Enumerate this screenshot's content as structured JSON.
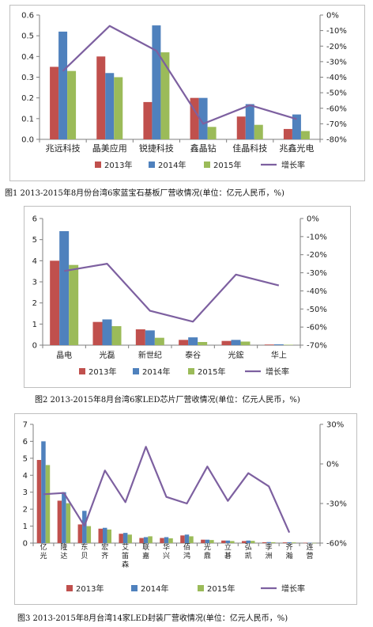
{
  "colors": {
    "y2013": "#c0504d",
    "y2014": "#4f81bd",
    "y2015": "#9bbb59",
    "growth": "#7d60a0",
    "axis": "#7f7f7f",
    "text": "#222222"
  },
  "legend_labels": [
    "2013年",
    "2014年",
    "2015年",
    "增长率"
  ],
  "captions": [
    "图1  2013-2015年8月份台湾6家蓝宝石基板厂营收情况(单位：亿元人民币，%)",
    "图2  2013-2015年8月台湾6家LED芯片厂营收情况(单位：亿元人民币，%)",
    "图3  2013-2015年8月台湾14家LED封装厂营收情况(单位：亿元人民币，%)"
  ],
  "chart_data": [
    {
      "type": "bar",
      "categories": [
        "兆远科技",
        "晶美应用",
        "锐捷科技",
        "鑫晶钻",
        "佳晶科技",
        "兆鑫光电"
      ],
      "series": [
        {
          "name": "2013年",
          "values": [
            0.35,
            0.4,
            0.18,
            0.2,
            0.11,
            0.05
          ]
        },
        {
          "name": "2014年",
          "values": [
            0.52,
            0.32,
            0.55,
            0.2,
            0.17,
            0.12
          ]
        },
        {
          "name": "2015年",
          "values": [
            0.33,
            0.3,
            0.42,
            0.06,
            0.07,
            0.04
          ]
        },
        {
          "name": "增长率",
          "axis": "right",
          "type": "line",
          "values": [
            -36,
            -7,
            -23,
            -70,
            -58,
            -67
          ]
        }
      ],
      "ylim": [
        0,
        0.6
      ],
      "yticks": [
        "0.0",
        "0.1",
        "0.2",
        "0.3",
        "0.4",
        "0.5",
        "0.6"
      ],
      "y2lim": [
        -80,
        0
      ],
      "y2ticks": [
        "0%",
        "-10%",
        "-20%",
        "-30%",
        "-40%",
        "-50%",
        "-60%",
        "-70%",
        "-80%"
      ],
      "grid": false,
      "legend": "bottom"
    },
    {
      "type": "bar",
      "categories": [
        "晶电",
        "光磊",
        "新世纪",
        "泰谷",
        "光鋐",
        "华上"
      ],
      "series": [
        {
          "name": "2013年",
          "values": [
            4.0,
            1.1,
            0.75,
            0.25,
            0.2,
            0.03
          ]
        },
        {
          "name": "2014年",
          "values": [
            5.4,
            1.22,
            0.7,
            0.37,
            0.25,
            0.04
          ]
        },
        {
          "name": "2015年",
          "values": [
            3.8,
            0.9,
            0.35,
            0.15,
            0.17,
            0.02
          ]
        },
        {
          "name": "增长率",
          "axis": "right",
          "type": "line",
          "values": [
            -29,
            -25,
            -51,
            -57,
            -31,
            -37
          ]
        }
      ],
      "ylim": [
        0,
        6
      ],
      "yticks": [
        "0",
        "1",
        "2",
        "3",
        "4",
        "5",
        "6"
      ],
      "y2lim": [
        -70,
        0
      ],
      "y2ticks": [
        "0%",
        "-10%",
        "-20%",
        "-30%",
        "-40%",
        "-50%",
        "-60%",
        "-70%"
      ],
      "grid": false,
      "legend": "bottom"
    },
    {
      "type": "bar",
      "categories": [
        "亿光",
        "隆达",
        "东贝",
        "宏齐",
        "艾笛森",
        "联嘉",
        "华兴",
        "佰鸿",
        "光鼎",
        "立碁",
        "弘凯",
        "李洲",
        "齐瀚",
        "连营"
      ],
      "series": [
        {
          "name": "2013年",
          "values": [
            4.9,
            2.5,
            1.1,
            0.85,
            0.55,
            0.3,
            0.3,
            0.45,
            0.2,
            0.15,
            0.12,
            0.05,
            0.04,
            0.02
          ]
        },
        {
          "name": "2014年",
          "values": [
            6.0,
            3.0,
            1.9,
            0.9,
            0.6,
            0.35,
            0.35,
            0.5,
            0.2,
            0.15,
            0.15,
            0.06,
            0.05,
            0.02
          ]
        },
        {
          "name": "2015年",
          "values": [
            4.6,
            2.35,
            1.0,
            0.8,
            0.5,
            0.4,
            0.28,
            0.4,
            0.18,
            0.12,
            0.13,
            0.05,
            0.04,
            0.01
          ]
        },
        {
          "name": "增长率",
          "axis": "right",
          "type": "line",
          "values": [
            -23,
            -22,
            -47,
            -5,
            -29,
            13,
            -25,
            -30,
            -2,
            -28,
            -7,
            -17,
            -52,
            null
          ]
        }
      ],
      "ylim": [
        0,
        7
      ],
      "yticks": [
        "0",
        "1",
        "2",
        "3",
        "4",
        "5",
        "6",
        "7"
      ],
      "y2lim": [
        -60,
        30
      ],
      "y2ticks": [
        "30%",
        "0%",
        "-30%",
        "-60%"
      ],
      "grid": false,
      "legend": "bottom"
    }
  ]
}
